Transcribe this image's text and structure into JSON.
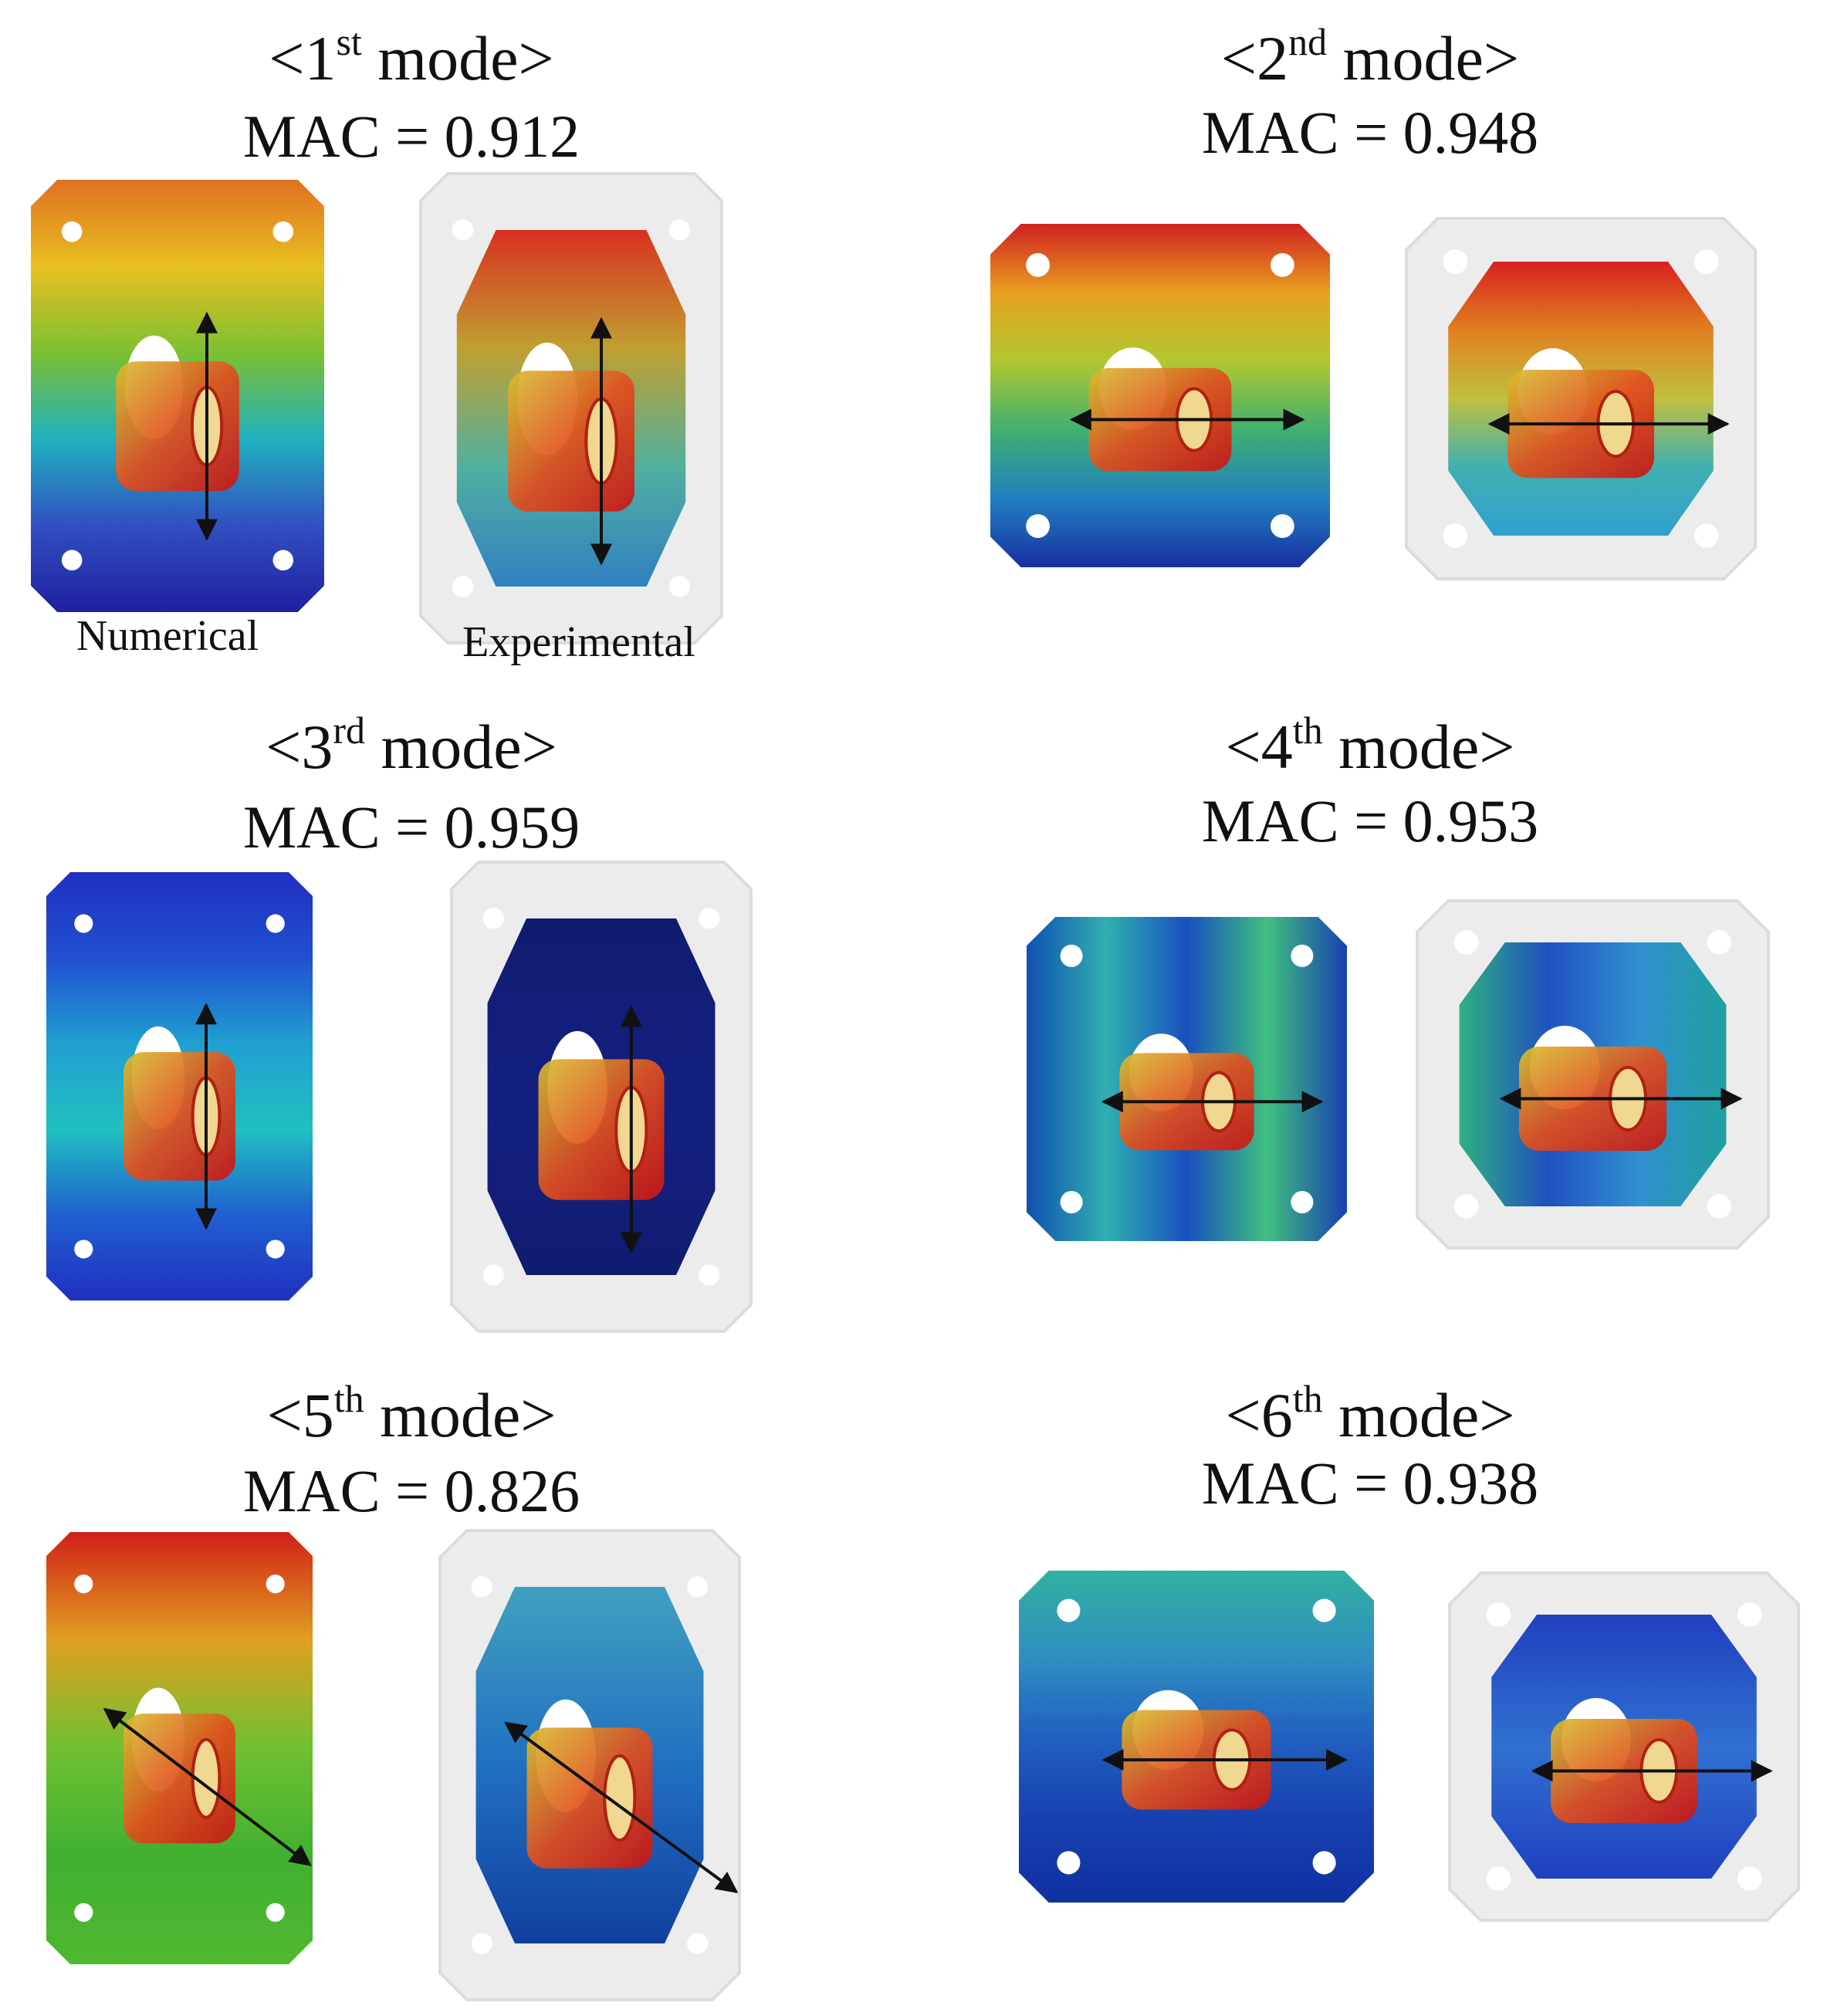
{
  "panels": [
    {
      "title": [
        "<1",
        "st",
        " mode>"
      ],
      "mac": "MAC = 0.912",
      "labels": [
        "Numerical",
        "Experimental"
      ]
    },
    {
      "title": [
        "<2",
        "nd",
        " mode>"
      ],
      "mac": "MAC = 0.948"
    },
    {
      "title": [
        "<3",
        "rd",
        " mode>"
      ],
      "mac": "MAC = 0.959"
    },
    {
      "title": [
        "<4",
        "th",
        " mode>"
      ],
      "mac": "MAC = 0.953"
    },
    {
      "title": [
        "<5",
        "th",
        " mode>"
      ],
      "mac": "MAC = 0.826"
    },
    {
      "title": [
        "<6",
        "th",
        " mode>"
      ],
      "mac": "MAC = 0.938"
    }
  ]
}
